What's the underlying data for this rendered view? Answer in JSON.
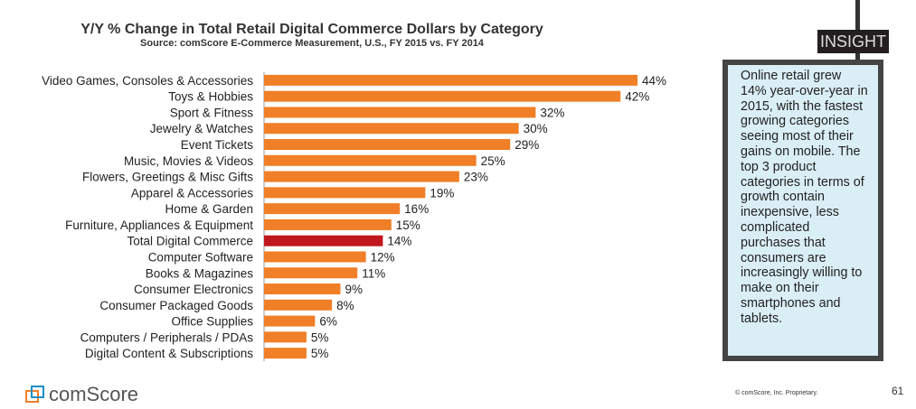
{
  "chart_data": {
    "type": "bar",
    "orientation": "horizontal",
    "title": "Y/Y % Change in Total Retail Digital Commerce Dollars by Category",
    "subtitle": "Source: comScore E-Commerce Measurement, U.S., FY 2015 vs. FY 2014",
    "categories": [
      "Video Games, Consoles & Accessories",
      "Toys & Hobbies",
      "Sport & Fitness",
      "Jewelry & Watches",
      "Event Tickets",
      "Music, Movies & Videos",
      "Flowers, Greetings & Misc Gifts",
      "Apparel & Accessories",
      "Home & Garden",
      "Furniture, Appliances & Equipment",
      "Total Digital Commerce",
      "Computer Software",
      "Books & Magazines",
      "Consumer Electronics",
      "Consumer Packaged Goods",
      "Office Supplies",
      "Computers / Peripherals / PDAs",
      "Digital Content & Subscriptions"
    ],
    "values": [
      44,
      42,
      32,
      30,
      29,
      25,
      23,
      19,
      16,
      15,
      14,
      12,
      11,
      9,
      8,
      6,
      5,
      5
    ],
    "data_labels": [
      "44%",
      "42%",
      "32%",
      "30%",
      "29%",
      "25%",
      "23%",
      "19%",
      "16%",
      "15%",
      "14%",
      "12%",
      "11%",
      "9%",
      "8%",
      "6%",
      "5%",
      "5%"
    ],
    "highlight_category": "Total Digital Commerce",
    "colors": {
      "bar": "#f07f27",
      "highlight": "#c0171f"
    },
    "xlim": [
      0,
      50
    ],
    "grid": false
  },
  "insight": {
    "tag": "INSIGHT",
    "text": "Online retail grew 14% year-over-year in 2015, with the fastest growing categories seeing most of their gains on mobile. The top 3 product categories in terms of growth contain inexpensive, less complicated purchases that consumers are increasingly willing to make on their smartphones and tablets."
  },
  "footer": {
    "logo": "comScore",
    "copyright": "© comScore, Inc. Proprietary.",
    "page": "61"
  }
}
